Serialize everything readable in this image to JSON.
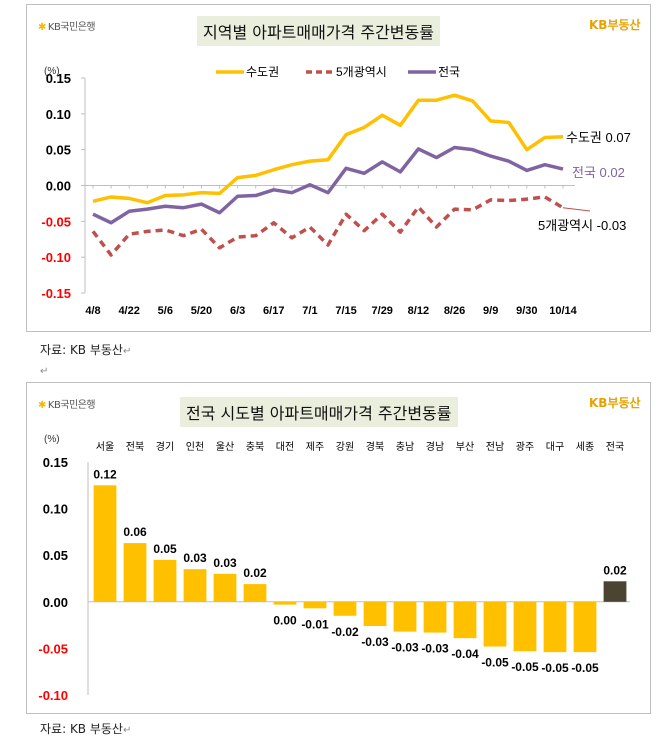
{
  "top_panel": {
    "bank_logo": "KB국민은행",
    "brand_logo": "KB부동산",
    "title": "지역별 아파트매매가격 주간변동률",
    "caption": "자료: KB 부동산"
  },
  "bottom_panel": {
    "bank_logo": "KB국민은행",
    "brand_logo": "KB부동산",
    "title": "전국 시도별 아파트매매가격 주간변동률",
    "caption": "자료: KB 부동산"
  },
  "colors": {
    "capital": "#ffc000",
    "metro5": "#c0504d",
    "national": "#8064a2",
    "bar": "#ffc000",
    "bar_national": "#4a4430",
    "negative_tick": "#ff0000",
    "title_bg": "#eaeedd"
  },
  "chart_data": [
    {
      "type": "line",
      "unit": "(%)",
      "ylim": [
        -0.15,
        0.15
      ],
      "yticks": [
        "0.15",
        "0.10",
        "0.05",
        "0.00",
        "-0.05",
        "-0.10",
        "-0.15"
      ],
      "x": [
        "4/8",
        "4/15",
        "4/22",
        "4/29",
        "5/6",
        "5/13",
        "5/20",
        "5/27",
        "6/3",
        "6/10",
        "6/17",
        "6/24",
        "7/1",
        "7/8",
        "7/15",
        "7/22",
        "7/29",
        "8/5",
        "8/12",
        "8/19",
        "8/26",
        "9/2",
        "9/9",
        "9/23",
        "9/30",
        "10/7",
        "10/14"
      ],
      "xtick_labels": [
        "4/8",
        "4/22",
        "5/6",
        "5/20",
        "6/3",
        "6/17",
        "7/1",
        "7/15",
        "7/29",
        "8/12",
        "8/26",
        "9/9",
        "9/30",
        "10/14"
      ],
      "legend_position": "top",
      "series": [
        {
          "name": "수도권",
          "style": "solid",
          "end_label": "수도권 0.07",
          "values": [
            -0.022,
            -0.016,
            -0.018,
            -0.024,
            -0.014,
            -0.013,
            -0.01,
            -0.011,
            0.011,
            0.014,
            0.022,
            0.029,
            0.034,
            0.036,
            0.071,
            0.081,
            0.098,
            0.084,
            0.119,
            0.119,
            0.126,
            0.118,
            0.09,
            0.088,
            0.05,
            0.067,
            0.068
          ]
        },
        {
          "name": "5개광역시",
          "style": "dashed",
          "end_label": "5개광역시 -0.03",
          "values": [
            -0.064,
            -0.097,
            -0.068,
            -0.064,
            -0.062,
            -0.07,
            -0.061,
            -0.087,
            -0.072,
            -0.07,
            -0.052,
            -0.073,
            -0.058,
            -0.083,
            -0.04,
            -0.063,
            -0.04,
            -0.065,
            -0.03,
            -0.058,
            -0.033,
            -0.034,
            -0.02,
            -0.021,
            -0.019,
            -0.016,
            -0.031
          ]
        },
        {
          "name": "전국",
          "style": "solid",
          "end_label": "전국 0.02",
          "values": [
            -0.04,
            -0.052,
            -0.036,
            -0.033,
            -0.029,
            -0.031,
            -0.026,
            -0.038,
            -0.015,
            -0.014,
            -0.006,
            -0.01,
            0.001,
            -0.01,
            0.024,
            0.017,
            0.033,
            0.019,
            0.051,
            0.039,
            0.053,
            0.05,
            0.041,
            0.034,
            0.021,
            0.029,
            0.023
          ]
        }
      ]
    },
    {
      "type": "bar",
      "unit": "(%)",
      "ylim": [
        -0.1,
        0.15
      ],
      "yticks": [
        "0.15",
        "0.10",
        "0.05",
        "0.00",
        "-0.05",
        "-0.10"
      ],
      "categories": [
        "서울",
        "전북",
        "경기",
        "인천",
        "울산",
        "충북",
        "대전",
        "제주",
        "강원",
        "경북",
        "충남",
        "경남",
        "부산",
        "전남",
        "광주",
        "대구",
        "세종",
        "전국"
      ],
      "values": [
        0.125,
        0.063,
        0.045,
        0.035,
        0.03,
        0.019,
        -0.003,
        -0.007,
        -0.015,
        -0.026,
        -0.032,
        -0.033,
        -0.039,
        -0.048,
        -0.053,
        -0.054,
        -0.054,
        0.022
      ],
      "data_labels": [
        "0.12",
        "0.06",
        "0.05",
        "0.03",
        "0.03",
        "0.02",
        "0.00",
        "-0.01",
        "-0.02",
        "-0.03",
        "-0.03",
        "-0.03",
        "-0.04",
        "-0.05",
        "-0.05",
        "-0.05",
        "-0.05",
        "0.02"
      ]
    }
  ]
}
